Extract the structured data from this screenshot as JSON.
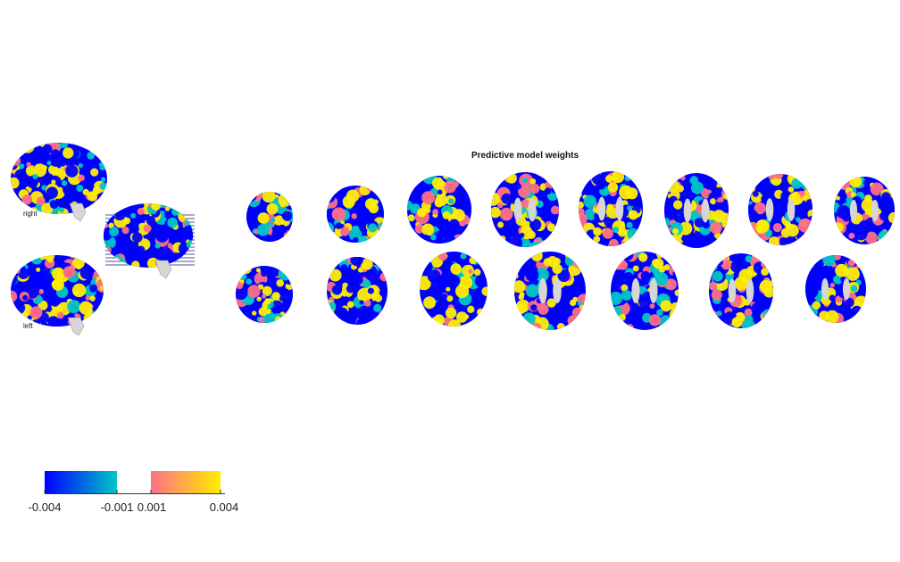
{
  "figure": {
    "title": "Predictive model weights"
  },
  "sagittal_views": {
    "right_label": "right",
    "left_label": "left"
  },
  "colormap": {
    "negative_low": "#0000ff",
    "negative_high": "#00c5c5",
    "positive_low": "#ff6f85",
    "positive_high": "#ffee00",
    "background_tissue": "#d6d6d6",
    "line_color": "#1a1a6e"
  },
  "colorbar": {
    "ticks": [
      "-0.004",
      "-0.001",
      "0.001",
      "0.004"
    ]
  },
  "axial_slices": {
    "top_row_count": 8,
    "bottom_row_count": 7
  }
}
